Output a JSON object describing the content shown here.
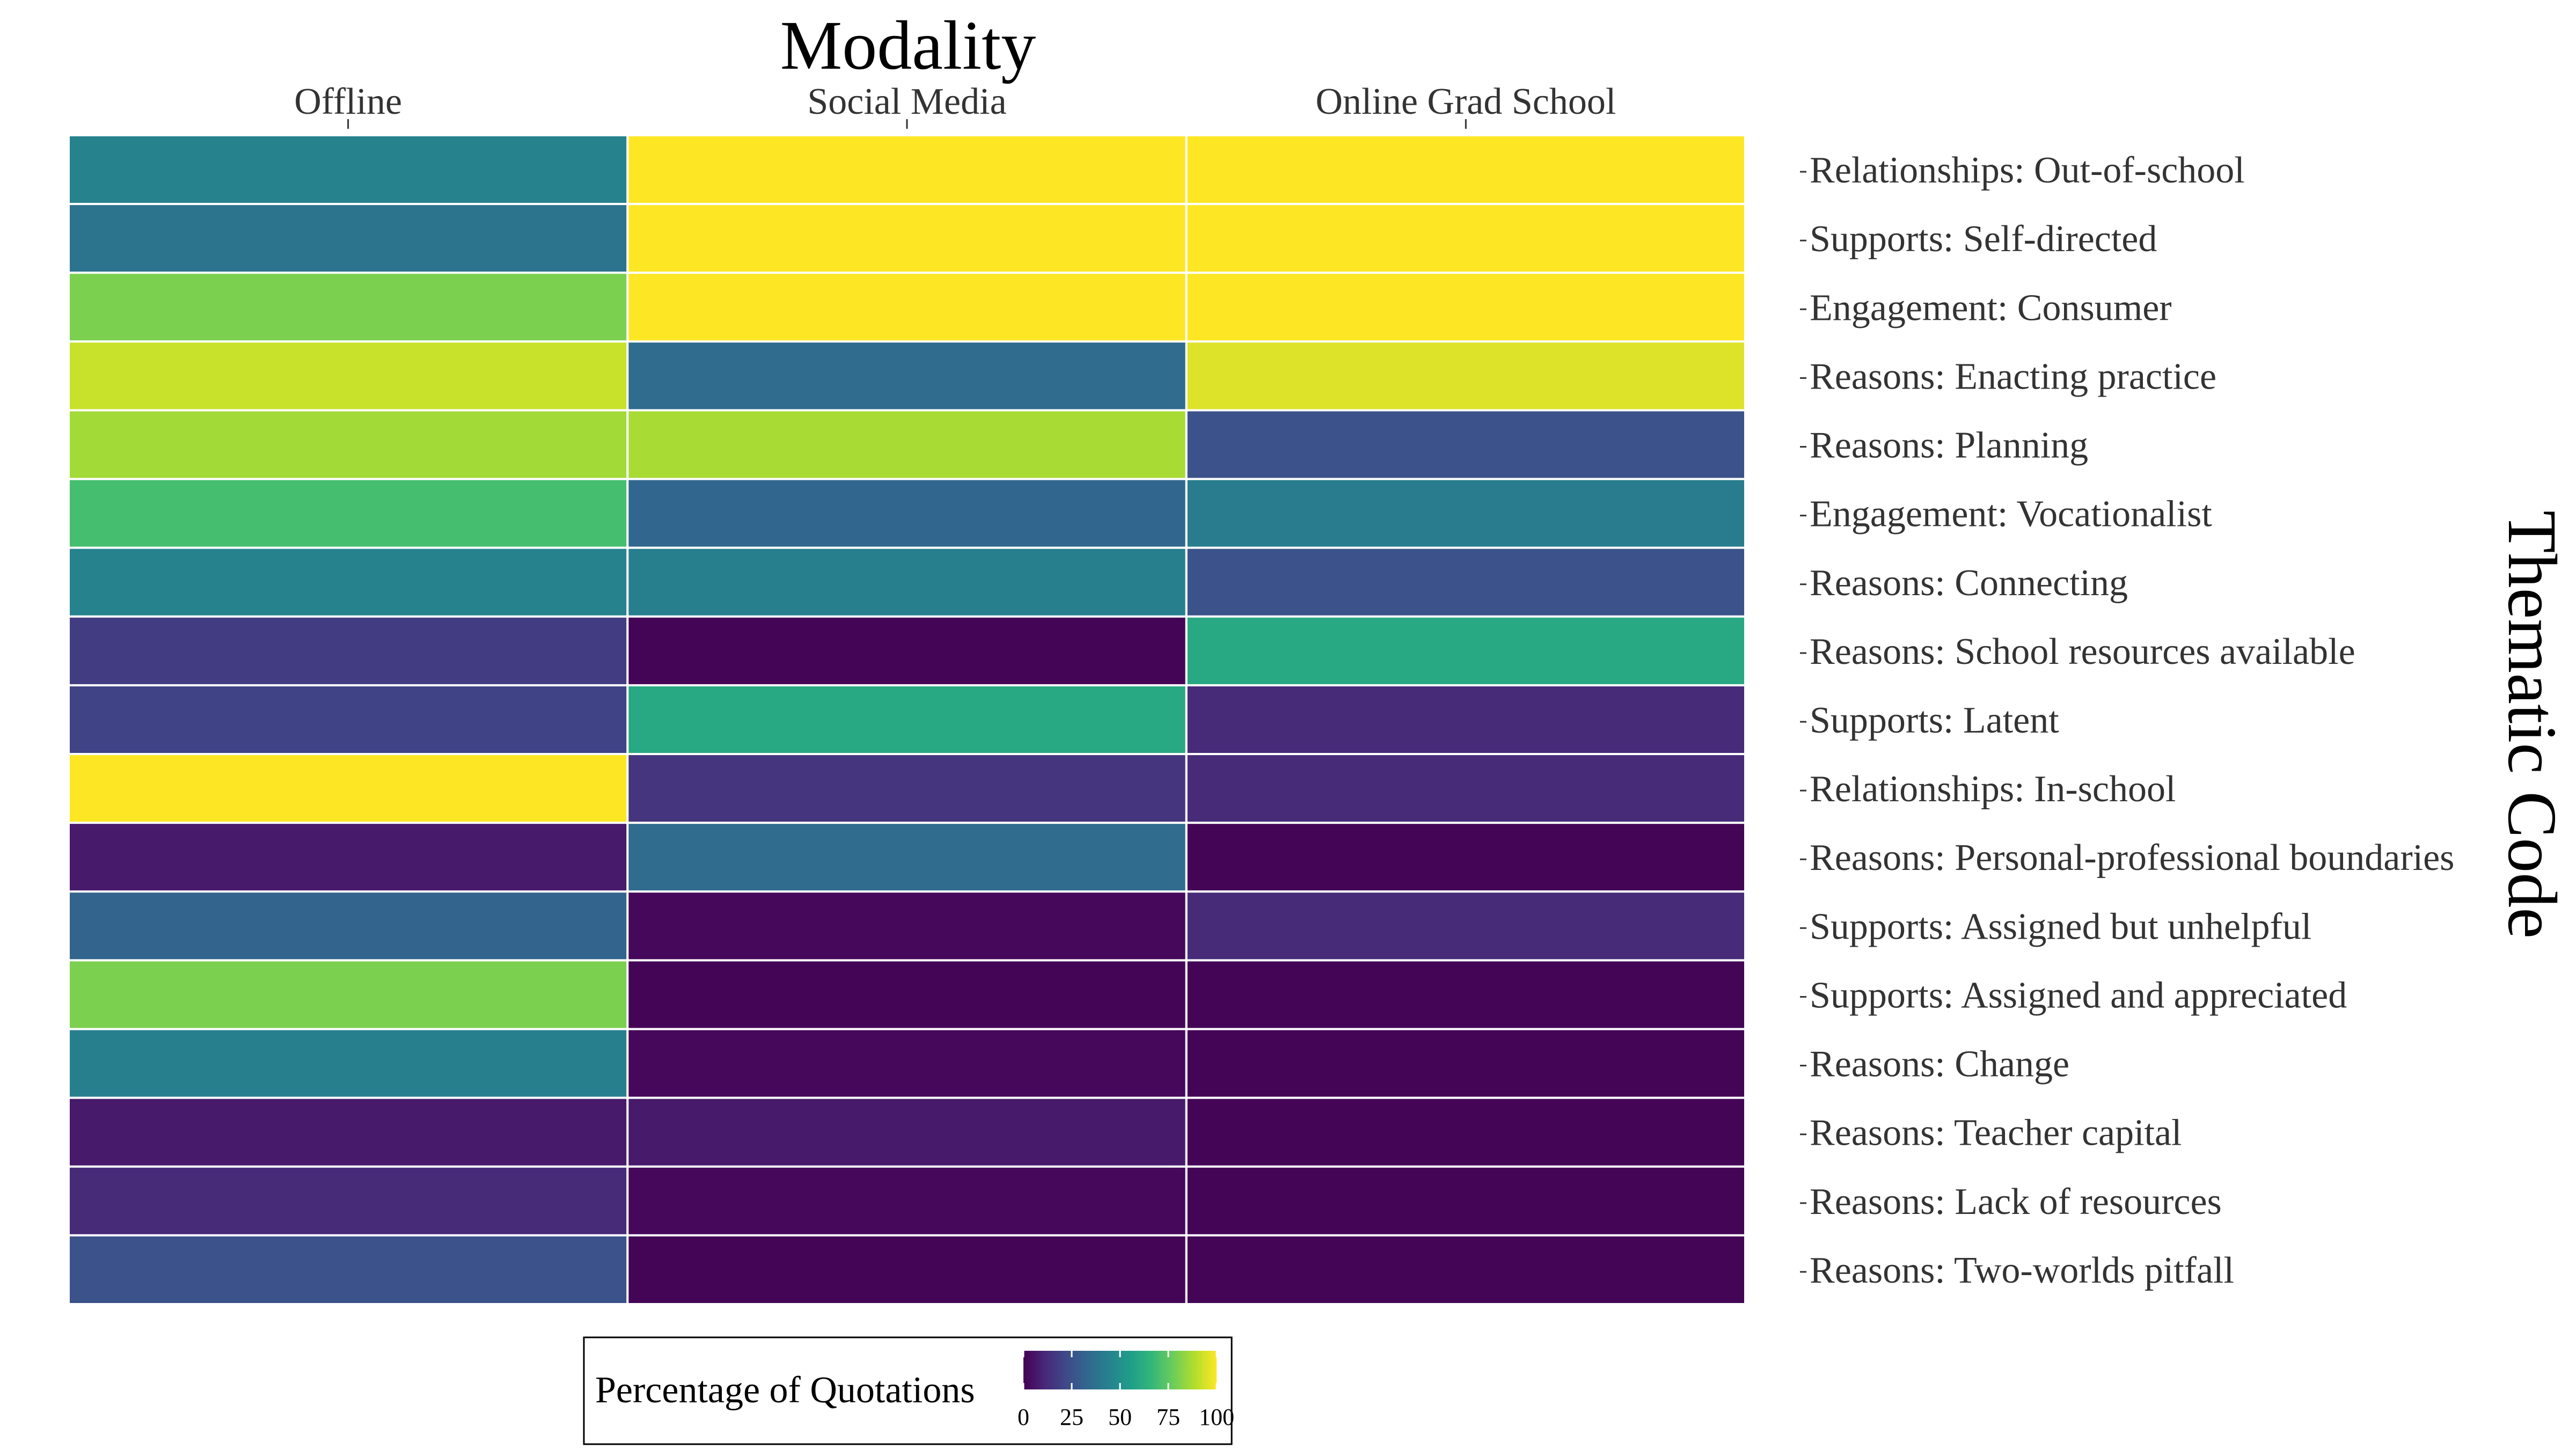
{
  "chart_data": {
    "type": "heatmap",
    "title": "Modality",
    "ylabel": "Thematic Code",
    "x_position": "top",
    "y_position": "right",
    "categories": [
      "Offline",
      "Social Media",
      "Online Grad School"
    ],
    "rows": [
      {
        "label": "Relationships: Out-of-school",
        "values": [
          45,
          100,
          100
        ]
      },
      {
        "label": "Supports: Self-directed",
        "values": [
          38,
          100,
          100
        ]
      },
      {
        "label": "Engagement: Consumer",
        "values": [
          80,
          100,
          100
        ]
      },
      {
        "label": "Reasons: Enacting practice",
        "values": [
          92,
          35,
          95
        ]
      },
      {
        "label": "Reasons: Planning",
        "values": [
          86,
          87,
          25
        ]
      },
      {
        "label": "Engagement: Vocationalist",
        "values": [
          70,
          33,
          42
        ]
      },
      {
        "label": "Reasons: Connecting",
        "values": [
          45,
          43,
          25
        ]
      },
      {
        "label": "Reasons: School resources available",
        "values": [
          18,
          1,
          60
        ]
      },
      {
        "label": "Supports: Latent",
        "values": [
          20,
          60,
          12
        ]
      },
      {
        "label": "Relationships: In-school",
        "values": [
          100,
          15,
          12
        ]
      },
      {
        "label": "Reasons: Personal-professional boundaries",
        "values": [
          7,
          35,
          1
        ]
      },
      {
        "label": "Supports: Assigned but unhelpful",
        "values": [
          32,
          2,
          12
        ]
      },
      {
        "label": "Supports: Assigned and appreciated",
        "values": [
          80,
          1,
          1
        ]
      },
      {
        "label": "Reasons: Change",
        "values": [
          43,
          2,
          1
        ]
      },
      {
        "label": "Reasons: Teacher capital",
        "values": [
          7,
          7,
          1
        ]
      },
      {
        "label": "Reasons: Lack of resources",
        "values": [
          12,
          2,
          1
        ]
      },
      {
        "label": "Reasons: Two-worlds pitfall",
        "values": [
          25,
          1,
          1
        ]
      }
    ],
    "color_scale": {
      "name": "viridis",
      "domain": [
        0,
        100
      ],
      "stops": [
        "#440154",
        "#482878",
        "#3e4a89",
        "#31688e",
        "#26828e",
        "#1f9e89",
        "#35b779",
        "#6dcd59",
        "#b4de2c",
        "#fde725"
      ]
    },
    "legend": {
      "title": "Percentage of Quotations",
      "ticks": [
        0,
        25,
        50,
        75,
        100
      ],
      "position": "bottom"
    },
    "grid": false
  }
}
